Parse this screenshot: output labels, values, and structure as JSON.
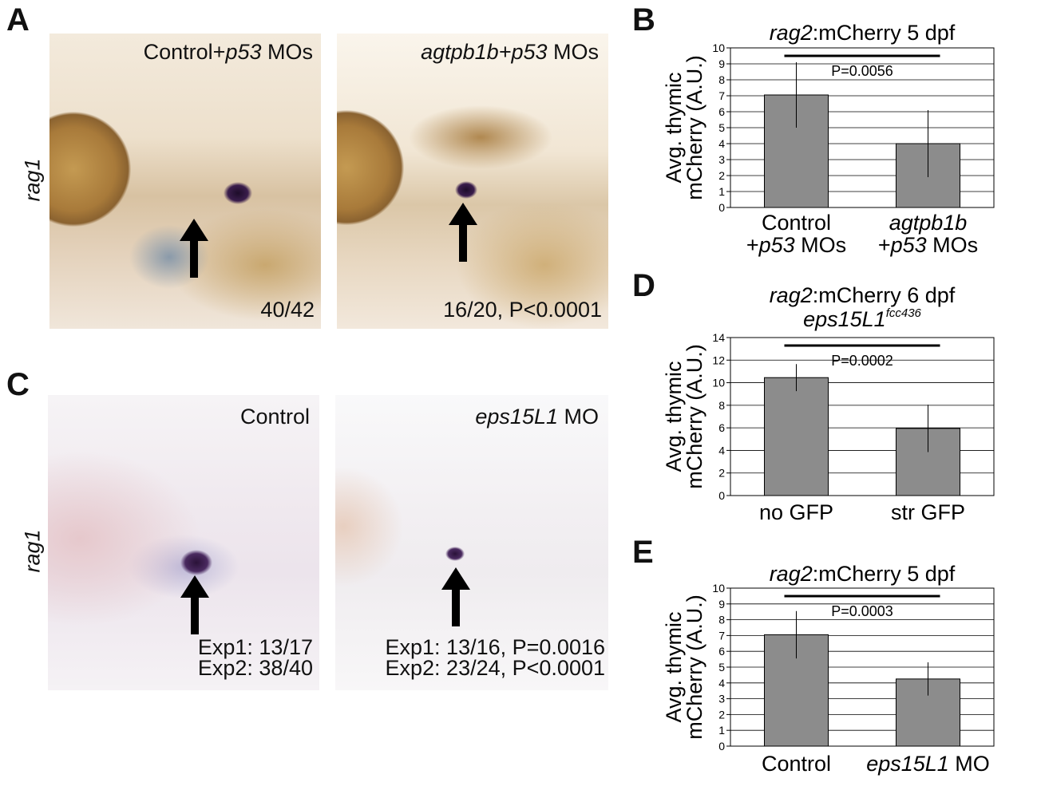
{
  "panels": {
    "a": {
      "letter": "A",
      "side_label": "rag1",
      "left": {
        "label_plain": "Control+",
        "label_ital": "p53",
        "label_tail": " MOs",
        "count": "40/42"
      },
      "right": {
        "label_ital": "agtpb1b+p53",
        "label_tail": " MOs",
        "count": "16/20, P<0.0001"
      }
    },
    "c": {
      "letter": "C",
      "side_label": "rag1",
      "left": {
        "label_plain": "Control",
        "count1": "Exp1: 13/17",
        "count2": "Exp2: 38/40"
      },
      "right": {
        "label_ital": "eps15L1",
        "label_tail": " MO",
        "count1": "Exp1: 13/16, P=0.0016",
        "count2": "Exp2: 23/24, P<0.0001"
      }
    },
    "b_letter": "B",
    "d_letter": "D",
    "e_letter": "E"
  },
  "colors": {
    "bar": "#8c8c8c",
    "grid": "#000000",
    "blot": "#2a1436"
  },
  "chart_data": [
    {
      "id": "B",
      "type": "bar",
      "title_ital": "rag2",
      "title_tail": ":mCherry 5 dpf",
      "ylabel_line1": "Avg. thymic",
      "ylabel_line2": "mCherry (A.U.)",
      "ylim": [
        0,
        10
      ],
      "yticks": [
        "0",
        "1",
        "2",
        "3",
        "4",
        "5",
        "6",
        "7",
        "8",
        "9",
        "10"
      ],
      "categories": [
        {
          "line1_plain": "Control",
          "line1_ital": "",
          "line2_plain": "+",
          "line2_ital": "p53",
          "line2_tail": " MOs"
        },
        {
          "line1_plain": "",
          "line1_ital": "agtpb1b",
          "line2_plain": "+",
          "line2_ital": "p53",
          "line2_tail": " MOs"
        }
      ],
      "values": [
        7.05,
        4.0
      ],
      "errors": [
        2.05,
        2.1
      ],
      "pvalue": "P=0.0056",
      "grid": true
    },
    {
      "id": "D",
      "type": "bar",
      "title_ital": "rag2",
      "title_tail": ":mCherry 6 dpf",
      "subtitle_ital": "eps15L1",
      "subtitle_sup": "fcc436",
      "ylabel_line1": "Avg. thymic",
      "ylabel_line2": "mCherry (A.U.)",
      "ylim": [
        0,
        14
      ],
      "yticks": [
        "0",
        "2",
        "4",
        "6",
        "8",
        "10",
        "12",
        "14"
      ],
      "categories": [
        {
          "line1_plain": "no GFP",
          "line1_ital": ""
        },
        {
          "line1_plain": "str GFP",
          "line1_ital": ""
        }
      ],
      "values": [
        10.45,
        5.95
      ],
      "errors": [
        1.2,
        2.1
      ],
      "pvalue": "P=0.0002",
      "grid": true
    },
    {
      "id": "E",
      "type": "bar",
      "title_ital": "rag2",
      "title_tail": ":mCherry 5 dpf",
      "ylabel_line1": "Avg. thymic",
      "ylabel_line2": "mCherry (A.U.)",
      "ylim": [
        0,
        10
      ],
      "yticks": [
        "0",
        "1",
        "2",
        "3",
        "4",
        "5",
        "6",
        "7",
        "8",
        "9",
        "10"
      ],
      "categories": [
        {
          "line1_plain": "Control",
          "line1_ital": ""
        },
        {
          "line1_plain": "",
          "line1_ital": "eps15L1",
          "line1_tail": " MO"
        }
      ],
      "values": [
        7.05,
        4.25
      ],
      "errors": [
        1.5,
        1.05
      ],
      "pvalue": "P=0.0003",
      "grid": true
    }
  ]
}
